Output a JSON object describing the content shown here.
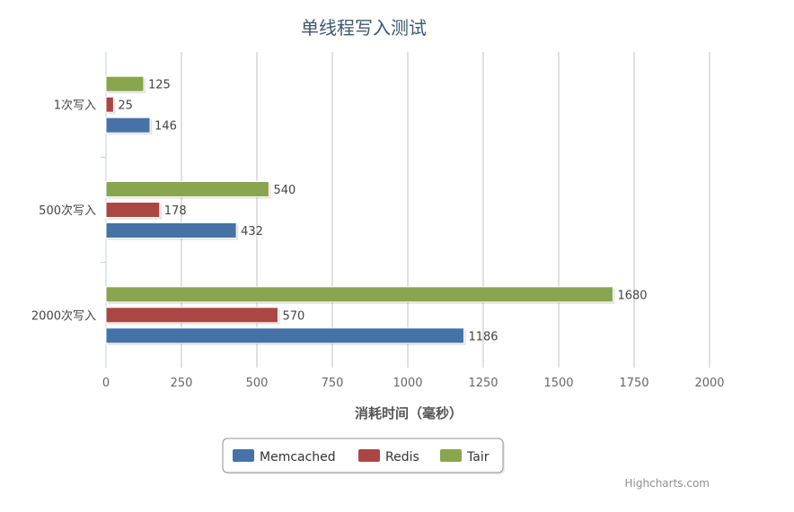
{
  "chart_data": {
    "type": "bar",
    "orientation": "horizontal",
    "title": "单线程写入测试",
    "xlabel": "消耗时间（毫秒）",
    "ylabel": "",
    "categories": [
      "1次写入",
      "500次写入",
      "2000次写入"
    ],
    "series": [
      {
        "name": "Memcached",
        "color": "#4572A7",
        "values": [
          146,
          432,
          1186
        ]
      },
      {
        "name": "Redis",
        "color": "#AA4643",
        "values": [
          25,
          178,
          570
        ]
      },
      {
        "name": "Tair",
        "color": "#89A54E",
        "values": [
          125,
          540,
          1680
        ]
      }
    ],
    "ticks": [
      "0",
      "250",
      "500",
      "750",
      "1000",
      "1250",
      "1500",
      "1750",
      "2000"
    ],
    "xlim": [
      0,
      2000
    ],
    "grid": true,
    "legend_position": "bottom-center",
    "credits": "Highcharts.com"
  }
}
